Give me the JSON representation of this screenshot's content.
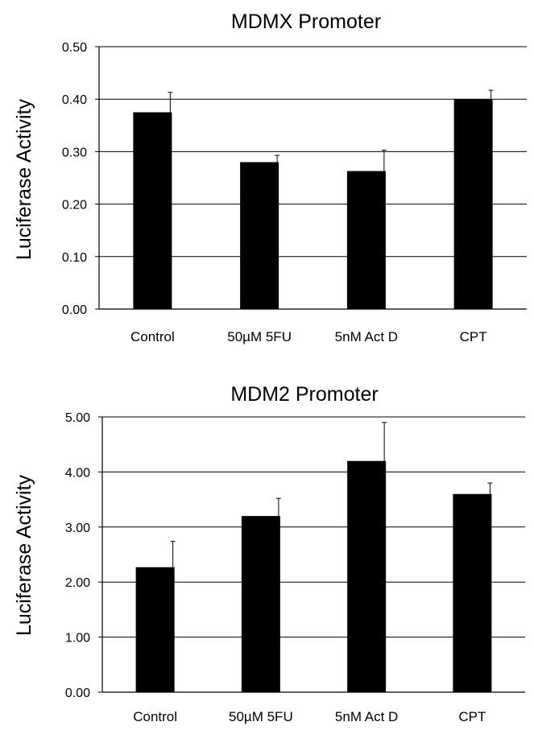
{
  "chart_data": [
    {
      "type": "bar",
      "title": "MDMX Promoter",
      "xlabel": "",
      "ylabel": "Luciferase Activity",
      "categories": [
        "Control",
        "50µM 5FU",
        "5nM Act D",
        "CPT"
      ],
      "values": [
        0.375,
        0.28,
        0.263,
        0.4
      ],
      "error_upper": [
        0.038,
        0.013,
        0.04,
        0.017
      ],
      "ylim": [
        0,
        0.5
      ],
      "yticks": [
        "0.00",
        "0.10",
        "0.20",
        "0.30",
        "0.40",
        "0.50"
      ],
      "grid": true,
      "bar_color": "#000000"
    },
    {
      "type": "bar",
      "title": "MDM2 Promoter",
      "xlabel": "",
      "ylabel": "Luciferase Activity",
      "categories": [
        "Control",
        "50µM 5FU",
        "5nM Act D",
        "CPT"
      ],
      "values": [
        2.27,
        3.2,
        4.2,
        3.6
      ],
      "error_upper": [
        0.47,
        0.32,
        0.7,
        0.2
      ],
      "ylim": [
        0,
        5
      ],
      "yticks": [
        "0.00",
        "1.00",
        "2.00",
        "3.00",
        "4.00",
        "5.00"
      ],
      "grid": true,
      "bar_color": "#000000"
    }
  ]
}
